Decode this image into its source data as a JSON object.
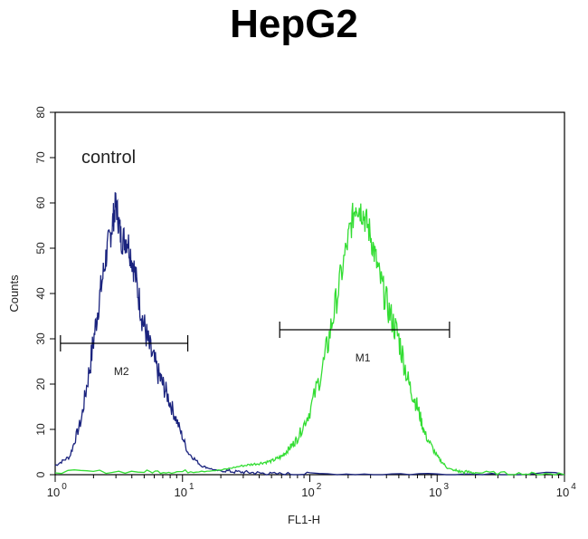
{
  "title": "HepG2",
  "chart_data": {
    "type": "line",
    "title": "HepG2",
    "xlabel": "FL1-H",
    "ylabel": "Counts",
    "xscale": "log",
    "xlim": [
      1,
      10000
    ],
    "ylim": [
      0,
      80
    ],
    "x_ticks": [
      {
        "base": "10",
        "exp": "0"
      },
      {
        "base": "10",
        "exp": "1"
      },
      {
        "base": "10",
        "exp": "2"
      },
      {
        "base": "10",
        "exp": "3"
      },
      {
        "base": "10",
        "exp": "4"
      }
    ],
    "y_ticks": [
      "0",
      "10",
      "20",
      "30",
      "40",
      "50",
      "60",
      "70",
      "80"
    ],
    "annotation": "control",
    "gates": [
      {
        "label": "M2",
        "x_start": 1.1,
        "x_end": 11,
        "y": 29
      },
      {
        "label": "M1",
        "x_start": 58,
        "x_end": 1250,
        "y": 32
      }
    ],
    "series": [
      {
        "name": "",
        "color": "#1a237e",
        "x": [
          1,
          1.3,
          1.6,
          1.9,
          2.2,
          2.5,
          2.8,
          3.0,
          3.3,
          3.7,
          4.2,
          4.8,
          5.5,
          6.5,
          7.5,
          9,
          11,
          14,
          18,
          25,
          35,
          50,
          100,
          1000,
          10000
        ],
        "y": [
          2,
          4,
          12,
          25,
          38,
          48,
          55,
          60,
          52,
          52,
          45,
          35,
          28,
          22,
          18,
          12,
          5,
          2,
          1,
          0.5,
          0.3,
          0,
          0,
          0,
          0
        ]
      },
      {
        "name": "",
        "color": "#33dd33",
        "x": [
          1,
          5,
          10,
          20,
          30,
          40,
          50,
          60,
          70,
          80,
          100,
          130,
          160,
          200,
          230,
          260,
          300,
          350,
          420,
          500,
          600,
          700,
          800,
          1000,
          1200,
          1500,
          2000,
          5000,
          10000
        ],
        "y": [
          0.5,
          0.5,
          0.5,
          1,
          2,
          2.5,
          3,
          4,
          6,
          8,
          14,
          25,
          38,
          52,
          60,
          58,
          53,
          44,
          36,
          30,
          20,
          15,
          9,
          4,
          1.5,
          0.5,
          0.3,
          0,
          0
        ]
      }
    ]
  }
}
